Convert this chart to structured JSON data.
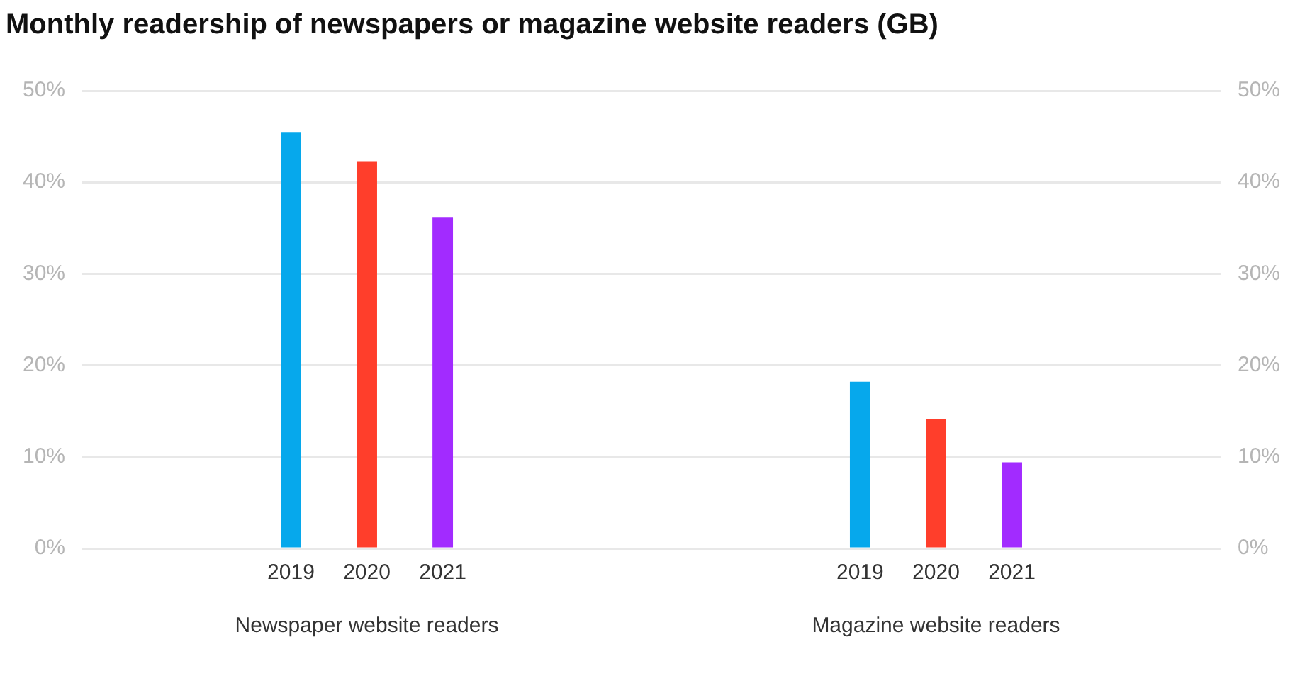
{
  "chart_data": {
    "type": "bar",
    "title": "Monthly readership of newspapers or magazine website readers (GB)",
    "categories": [
      "Newspaper website readers",
      "Magazine website readers"
    ],
    "series": [
      {
        "name": "2019",
        "color": "#06a8ec",
        "values": [
          45.5,
          18.2
        ]
      },
      {
        "name": "2020",
        "color": "#ff3e2b",
        "values": [
          42.3,
          14.1
        ]
      },
      {
        "name": "2021",
        "color": "#a22bff",
        "values": [
          36.2,
          9.4
        ]
      }
    ],
    "ylim": [
      0,
      50
    ],
    "yticks": [
      {
        "value": 0,
        "label": "0%"
      },
      {
        "value": 10,
        "label": "10%"
      },
      {
        "value": 20,
        "label": "20%"
      },
      {
        "value": 30,
        "label": "30%"
      },
      {
        "value": 40,
        "label": "40%"
      },
      {
        "value": 50,
        "label": "50%"
      }
    ],
    "y2lim": [
      0,
      50
    ],
    "y2ticks": [
      {
        "value": 0,
        "label": "0%"
      },
      {
        "value": 10,
        "label": "10%"
      },
      {
        "value": 20,
        "label": "20%"
      },
      {
        "value": 30,
        "label": "30%"
      },
      {
        "value": 40,
        "label": "40%"
      },
      {
        "value": 50,
        "label": "50%"
      }
    ],
    "grid": "y",
    "legend": false
  }
}
